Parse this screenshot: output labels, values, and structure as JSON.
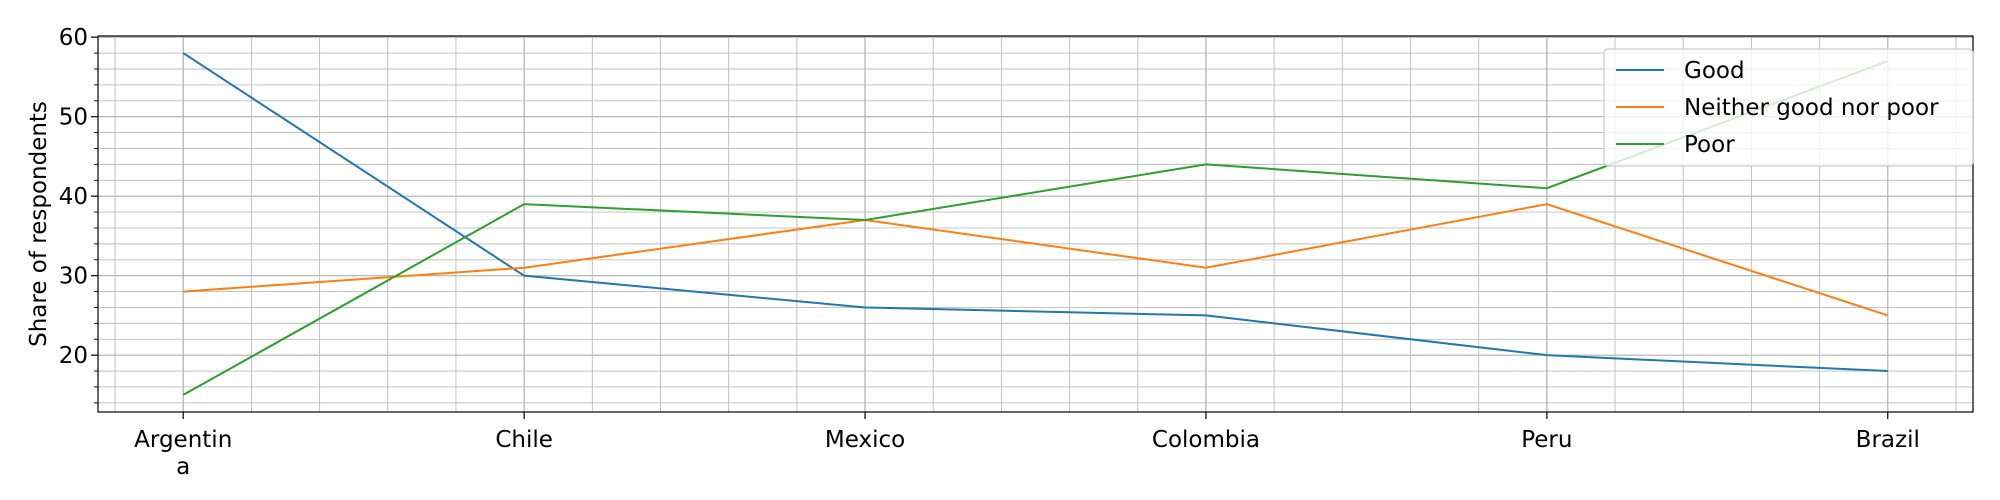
{
  "chart_data": {
    "type": "line",
    "categories": [
      "Argentin\na",
      "Chile",
      "Mexico",
      "Colombia",
      "Peru",
      "Brazil"
    ],
    "series": [
      {
        "name": "Good",
        "color": "#1f77b4",
        "values": [
          58,
          30,
          26,
          25,
          20,
          18
        ]
      },
      {
        "name": "Neither good nor poor",
        "color": "#ff7f0e",
        "values": [
          28,
          31,
          37,
          31,
          39,
          25
        ]
      },
      {
        "name": "Poor",
        "color": "#2ca02c",
        "values": [
          15,
          39,
          37,
          44,
          41,
          57
        ]
      }
    ],
    "title": "",
    "xlabel": "",
    "ylabel": "Share of respondents",
    "ylim": [
      12.85,
      60.15
    ],
    "yticks": [
      20,
      30,
      40,
      50,
      60
    ],
    "grid": true,
    "minor_grid": true,
    "legend_position": "top-right"
  }
}
